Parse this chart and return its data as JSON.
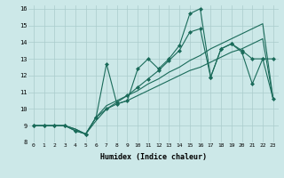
{
  "xlabel": "Humidex (Indice chaleur)",
  "bg_color": "#cce8e8",
  "grid_color": "#aacccc",
  "line_color": "#1a6b5a",
  "xlim": [
    -0.5,
    23.5
  ],
  "ylim": [
    8,
    16.2
  ],
  "xticks": [
    0,
    1,
    2,
    3,
    4,
    5,
    6,
    7,
    8,
    9,
    10,
    11,
    12,
    13,
    14,
    15,
    16,
    17,
    18,
    19,
    20,
    21,
    22,
    23
  ],
  "yticks": [
    8,
    9,
    10,
    11,
    12,
    13,
    14,
    15,
    16
  ],
  "line1": {
    "x": [
      0,
      1,
      2,
      3,
      4,
      5,
      6,
      7,
      8,
      9,
      10,
      11,
      12,
      13,
      14,
      15,
      16,
      17,
      18,
      19,
      20,
      21,
      22,
      23
    ],
    "y": [
      9.0,
      9.0,
      9.0,
      9.0,
      8.8,
      8.5,
      9.3,
      10.0,
      10.3,
      10.5,
      10.8,
      11.1,
      11.4,
      11.7,
      12.0,
      12.3,
      12.5,
      12.8,
      13.1,
      13.4,
      13.6,
      13.9,
      14.2,
      10.6
    ],
    "marker": false
  },
  "line2": {
    "x": [
      0,
      1,
      2,
      3,
      4,
      5,
      6,
      7,
      8,
      9,
      10,
      11,
      12,
      13,
      14,
      15,
      16,
      17,
      18,
      19,
      20,
      21,
      22,
      23
    ],
    "y": [
      9.0,
      9.0,
      9.0,
      9.0,
      8.8,
      8.5,
      9.5,
      10.2,
      10.5,
      10.8,
      11.1,
      11.5,
      11.8,
      12.2,
      12.5,
      12.9,
      13.2,
      13.6,
      13.9,
      14.2,
      14.5,
      14.8,
      15.1,
      10.6
    ],
    "marker": false
  },
  "line3": {
    "x": [
      0,
      1,
      2,
      3,
      4,
      5,
      6,
      7,
      8,
      9,
      10,
      11,
      12,
      13,
      14,
      15,
      16,
      17,
      18,
      19,
      20,
      21,
      22,
      23
    ],
    "y": [
      9.0,
      9.0,
      9.0,
      9.0,
      8.7,
      8.5,
      9.5,
      10.0,
      10.4,
      10.8,
      11.3,
      11.8,
      12.3,
      12.9,
      13.5,
      14.6,
      14.8,
      11.9,
      13.6,
      13.9,
      13.4,
      11.5,
      13.0,
      13.0
    ],
    "marker": true
  },
  "line4": {
    "x": [
      0,
      1,
      2,
      3,
      4,
      5,
      6,
      7,
      8,
      9,
      10,
      11,
      12,
      13,
      14,
      15,
      16,
      17,
      18,
      19,
      20,
      21,
      22,
      23
    ],
    "y": [
      9.0,
      9.0,
      9.0,
      9.0,
      8.7,
      8.5,
      9.5,
      12.7,
      10.3,
      10.5,
      12.4,
      13.0,
      12.4,
      13.0,
      13.8,
      15.7,
      16.0,
      11.9,
      13.6,
      13.9,
      13.5,
      13.0,
      13.0,
      10.6
    ],
    "marker": true
  }
}
